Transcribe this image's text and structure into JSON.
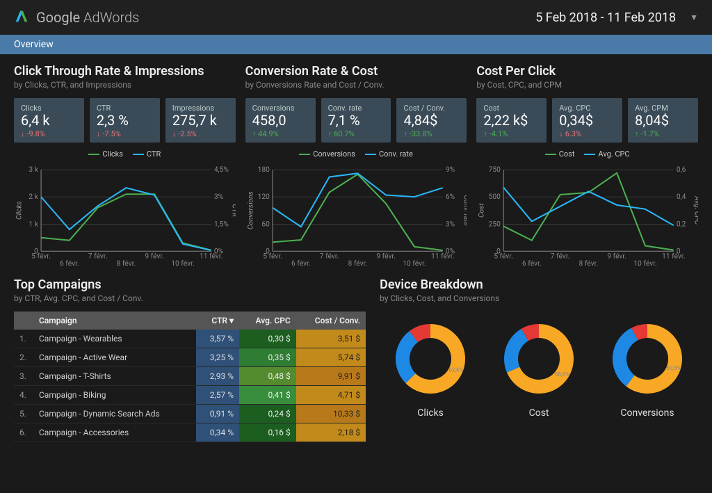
{
  "header": {
    "brand_google": "Google",
    "brand_adwords": " AdWords",
    "date_range": "5 Feb 2018 - 11 Feb 2018"
  },
  "overview_tab": "Overview",
  "colors": {
    "green": "#4caf50",
    "blue": "#29b6f6",
    "red": "#e53935",
    "orange": "#f9a825",
    "donut_blue": "#1e88e5",
    "donut_orange": "#f9a825",
    "donut_red": "#e53935",
    "axis": "#888888",
    "grid": "#555555"
  },
  "panels": [
    {
      "title": "Click Through Rate & Impressions",
      "subtitle": "by Clicks, CTR, and Impressions",
      "stats": [
        {
          "label": "Clicks",
          "value": "6,4 k",
          "change": "-9.8%",
          "dir": "down"
        },
        {
          "label": "CTR",
          "value": "2,3 %",
          "change": "-7.5%",
          "dir": "down"
        },
        {
          "label": "Impressions",
          "value": "275,7 k",
          "change": "-2.5%",
          "dir": "down"
        }
      ],
      "chart": {
        "legend": [
          {
            "name": "Clicks",
            "color": "#4caf50"
          },
          {
            "name": "CTR",
            "color": "#29b6f6"
          }
        ],
        "x_labels": [
          "5 févr.",
          "6 févr.",
          "7 févr.",
          "8 févr.",
          "9 févr.",
          "10 févr.",
          "11 févr."
        ],
        "x_stagger": true,
        "y1": {
          "title": "Clicks",
          "ticks": [
            "0",
            "1 k",
            "2 k",
            "3 k"
          ],
          "max": 3000
        },
        "y2": {
          "title": "CTR",
          "ticks": [
            "0%",
            "1,5%",
            "3%",
            "4,5%"
          ],
          "max": 4.5
        },
        "series1": [
          500,
          400,
          1600,
          2100,
          2100,
          300,
          40
        ],
        "series2": [
          3.0,
          1.2,
          2.5,
          3.5,
          3.1,
          0.4,
          0.05
        ]
      }
    },
    {
      "title": "Conversion Rate & Cost",
      "subtitle": "by Conversions Rate and Cost / Conv.",
      "stats": [
        {
          "label": "Conversions",
          "value": "458,0",
          "change": "44.9%",
          "dir": "up"
        },
        {
          "label": "Conv. rate",
          "value": "7,1 %",
          "change": "60.7%",
          "dir": "up"
        },
        {
          "label": "Cost / Conv.",
          "value": "4,84$",
          "change": "-33.8%",
          "dir": "up"
        }
      ],
      "chart": {
        "legend": [
          {
            "name": "Conversions",
            "color": "#4caf50"
          },
          {
            "name": "Conv. rate",
            "color": "#29b6f6"
          }
        ],
        "x_labels": [
          "5 févr.",
          "6 févr.",
          "7 févr.",
          "8 févr.",
          "9 févr.",
          "10 févr.",
          "11 févr."
        ],
        "x_stagger": true,
        "y1": {
          "title": "Conversions",
          "ticks": [
            "0",
            "60",
            "120",
            "180"
          ],
          "max": 180
        },
        "y2": {
          "title": "Conv. rate",
          "ticks": [
            "0%",
            "3%",
            "6%",
            "9%"
          ],
          "max": 9
        },
        "series1": [
          20,
          25,
          130,
          170,
          105,
          10,
          2
        ],
        "series2": [
          4.8,
          2.7,
          8.2,
          8.6,
          6.2,
          6.0,
          7.0
        ]
      }
    },
    {
      "title": "Cost Per Click",
      "subtitle": "by Cost, CPC, and CPM",
      "stats": [
        {
          "label": "Cost",
          "value": "2,22 k$",
          "change": "-4.1%",
          "dir": "up"
        },
        {
          "label": "Avg. CPC",
          "value": "0,34$",
          "change": "6.3%",
          "dir": "down"
        },
        {
          "label": "Avg. CPM",
          "value": "8,04$",
          "change": "-1.7%",
          "dir": "up"
        }
      ],
      "chart": {
        "legend": [
          {
            "name": "Cost",
            "color": "#4caf50"
          },
          {
            "name": "Avg. CPC",
            "color": "#29b6f6"
          }
        ],
        "x_labels": [
          "5 févr.",
          "6 févr.",
          "7 févr.",
          "8 févr.",
          "9 févr.",
          "10 févr.",
          "11 févr."
        ],
        "x_stagger": true,
        "y1": {
          "title": "Cost",
          "ticks": [
            "0",
            "250",
            "500",
            "750"
          ],
          "max": 750
        },
        "y2": {
          "title": "Avg. CPC",
          "ticks": [
            "0",
            "0,2",
            "0,4",
            "0,6"
          ],
          "max": 0.6
        },
        "series1": [
          230,
          100,
          520,
          540,
          720,
          50,
          10
        ],
        "series2": [
          0.47,
          0.22,
          0.33,
          0.44,
          0.34,
          0.31,
          0.19
        ]
      }
    }
  ],
  "campaigns": {
    "title": "Top Campaigns",
    "subtitle": "by CTR, Avg. CPC, and Cost / Conv.",
    "columns": [
      "Campaign",
      "CTR",
      "Avg. CPC",
      "Cost / Conv."
    ],
    "sort_col": "CTR",
    "rows": [
      {
        "idx": "1.",
        "name": "Campaign - Wearables",
        "ctr": "3,57 %",
        "cpc": "0,30 $",
        "cost": "3,51 $",
        "cpc_bg": "#1b5e20",
        "cost_bg": "#c28a1a"
      },
      {
        "idx": "2.",
        "name": "Campaign - Active Wear",
        "ctr": "3,25 %",
        "cpc": "0,35 $",
        "cost": "5,74 $",
        "cpc_bg": "#2e7d32",
        "cost_bg": "#c28a1a"
      },
      {
        "idx": "3.",
        "name": "Campaign - T-Shirts",
        "ctr": "2,93 %",
        "cpc": "0,48 $",
        "cost": "9,91 $",
        "cpc_bg": "#558b2f",
        "cost_bg": "#b8791a"
      },
      {
        "idx": "4.",
        "name": "Campaign - Biking",
        "ctr": "2,57 %",
        "cpc": "0,41 $",
        "cost": "4,71 $",
        "cpc_bg": "#388e3c",
        "cost_bg": "#c28a1a"
      },
      {
        "idx": "5.",
        "name": "Campaign - Dynamic Search Ads",
        "ctr": "0,91 %",
        "cpc": "0,24 $",
        "cost": "10,33 $",
        "cpc_bg": "#1b5e20",
        "cost_bg": "#b8791a"
      },
      {
        "idx": "6.",
        "name": "Campaign - Accessories",
        "ctr": "0,34 %",
        "cpc": "0,16 $",
        "cost": "2,18 $",
        "cpc_bg": "#1b5e20",
        "cost_bg": "#c28a1a"
      }
    ]
  },
  "devices": {
    "title": "Device Breakdown",
    "subtitle": "by Clicks, Cost, and Conversions",
    "donuts": [
      {
        "label": "Clicks",
        "slices": [
          {
            "pct": 62.6,
            "color": "#f9a825",
            "text": "62,6%"
          },
          {
            "pct": 27.1,
            "color": "#1e88e5",
            "text": ""
          },
          {
            "pct": 10.3,
            "color": "#e53935",
            "text": ""
          }
        ]
      },
      {
        "label": "Cost",
        "slices": [
          {
            "pct": 68.6,
            "color": "#f9a825",
            "text": "68,6%"
          },
          {
            "pct": 23.0,
            "color": "#1e88e5",
            "text": ""
          },
          {
            "pct": 8.4,
            "color": "#e53935",
            "text": ""
          }
        ]
      },
      {
        "label": "Conversions",
        "slices": [
          {
            "pct": 60.5,
            "color": "#f9a825",
            "text": "60,5%"
          },
          {
            "pct": 32.0,
            "color": "#1e88e5",
            "text": ""
          },
          {
            "pct": 7.5,
            "color": "#e53935",
            "text": ""
          }
        ]
      }
    ]
  }
}
